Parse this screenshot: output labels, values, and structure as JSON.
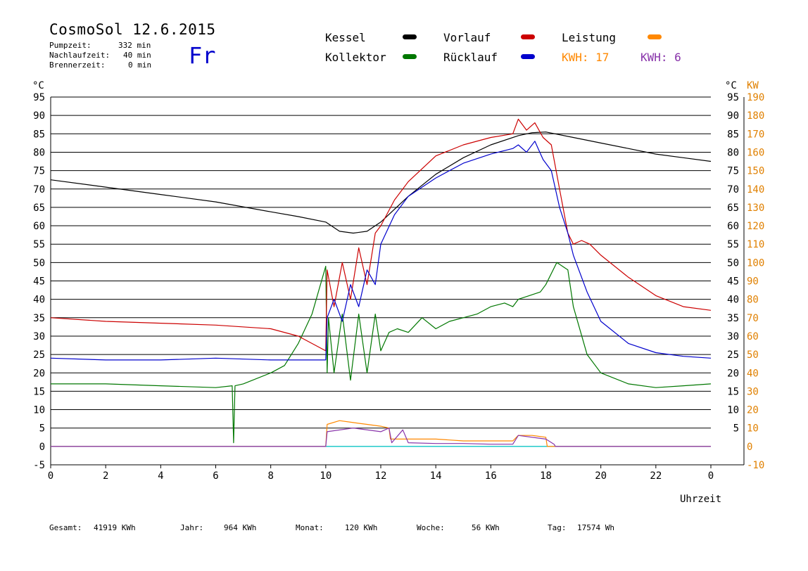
{
  "header": {
    "title": "CosmoSol 12.6.2015",
    "day": "Fr",
    "stats": [
      {
        "label": "Pumpzeit:",
        "value": "332 min"
      },
      {
        "label": "Nachlaufzeit:",
        "value": "40 min"
      },
      {
        "label": "Brennerzeit:",
        "value": "0 min"
      }
    ]
  },
  "legend": {
    "kessel": "Kessel",
    "kollektor": "Kollektor",
    "vorlauf": "Vorlauf",
    "ruecklauf": "Rücklauf",
    "leistung": "Leistung",
    "kwh1": "KWH: 17",
    "kwh2": "KWH: 6"
  },
  "colors": {
    "kessel": "#000000",
    "kollektor": "#007700",
    "vorlauf": "#cc0000",
    "ruecklauf": "#0000cc",
    "leistung": "#ff8800",
    "kwh2": "#8833aa",
    "baseline": "#00cccc"
  },
  "axes": {
    "left_unit": "°C",
    "right_unit": "°C",
    "right2_unit": "KW",
    "xlabel": "Uhrzeit"
  },
  "footer": [
    {
      "label": "Gesamt:",
      "value": "41919 KWh"
    },
    {
      "label": "Jahr:",
      "value": "964 KWh"
    },
    {
      "label": "Monat:",
      "value": "120 KWh"
    },
    {
      "label": "Woche:",
      "value": "56 KWh"
    },
    {
      "label": "Tag:",
      "value": "17574 Wh"
    }
  ],
  "chart_data": {
    "type": "line",
    "x_ticks": [
      "0",
      "2",
      "4",
      "6",
      "8",
      "10",
      "12",
      "14",
      "16",
      "18",
      "20",
      "22",
      "0"
    ],
    "xlim": [
      0,
      24
    ],
    "ylim": [
      -5,
      95
    ],
    "y_ticks_left": [
      -5,
      0,
      5,
      10,
      15,
      20,
      25,
      30,
      35,
      40,
      45,
      50,
      55,
      60,
      65,
      70,
      75,
      80,
      85,
      90,
      95
    ],
    "y_ticks_right": [
      5,
      10,
      15,
      20,
      25,
      30,
      35,
      40,
      45,
      50,
      55,
      60,
      65,
      70,
      75,
      80,
      85,
      90,
      95
    ],
    "y2_ticks": [
      -10,
      0,
      10,
      20,
      30,
      40,
      50,
      60,
      70,
      80,
      90,
      100,
      110,
      120,
      130,
      140,
      150,
      160,
      170,
      180,
      190
    ],
    "grid": true,
    "series": [
      {
        "name": "Kessel",
        "color": "#000000",
        "x": [
          0,
          2,
          4,
          6,
          8,
          9,
          10,
          10.5,
          11,
          11.5,
          12,
          12.5,
          13,
          14,
          15,
          16,
          17,
          17.5,
          18,
          19,
          20,
          21,
          22,
          23,
          24
        ],
        "y": [
          72.5,
          70.5,
          68.5,
          66.5,
          63.8,
          62.5,
          61,
          58.5,
          58,
          58.5,
          61,
          64.5,
          68,
          74,
          78.5,
          82,
          84.5,
          85.3,
          85.5,
          84,
          82.5,
          81,
          79.5,
          78.5,
          77.5
        ]
      },
      {
        "name": "Kollektor",
        "color": "#007700",
        "x": [
          0,
          2,
          4,
          6,
          6.6,
          6.65,
          6.7,
          7,
          8,
          8.5,
          9,
          9.5,
          10,
          10.05,
          10.1,
          10.3,
          10.6,
          10.9,
          11.2,
          11.5,
          11.8,
          12,
          12.3,
          12.6,
          13,
          13.5,
          14,
          14.5,
          15,
          15.5,
          16,
          16.5,
          16.8,
          17,
          17.4,
          17.8,
          18,
          18.4,
          18.8,
          19,
          19.5,
          20,
          21,
          22,
          23,
          24
        ],
        "y": [
          17,
          17,
          16.5,
          16,
          16.5,
          1,
          16.5,
          17,
          20,
          22,
          28,
          36,
          49,
          20,
          35,
          20,
          36,
          18,
          36,
          20,
          36,
          26,
          31,
          32,
          31,
          35,
          32,
          34,
          35,
          36,
          38,
          39,
          38,
          40,
          41,
          42,
          44,
          50,
          48,
          38,
          25,
          20,
          17,
          16,
          16.5,
          17
        ]
      },
      {
        "name": "Vorlauf",
        "color": "#cc0000",
        "x": [
          0,
          2,
          4,
          6,
          8,
          9,
          10,
          10.05,
          10.3,
          10.6,
          10.9,
          11.2,
          11.5,
          11.8,
          12,
          12.5,
          13,
          14,
          15,
          16,
          16.8,
          17,
          17.3,
          17.6,
          17.9,
          18.2,
          18.5,
          18.8,
          19,
          19.3,
          19.6,
          20,
          21,
          22,
          23,
          24
        ],
        "y": [
          35,
          34,
          33.5,
          33,
          32,
          30,
          26,
          48,
          38,
          50,
          40,
          54,
          44,
          58,
          60,
          67,
          72,
          79,
          82,
          84,
          85,
          89,
          86,
          88,
          84,
          82,
          70,
          58,
          55,
          56,
          55,
          52,
          46,
          41,
          38,
          37
        ]
      },
      {
        "name": "Rücklauf",
        "color": "#0000cc",
        "x": [
          0,
          2,
          4,
          6,
          8,
          9,
          10,
          10.05,
          10.3,
          10.6,
          10.9,
          11.2,
          11.5,
          11.8,
          12,
          12.5,
          13,
          14,
          15,
          16,
          16.8,
          17,
          17.3,
          17.6,
          17.9,
          18.2,
          18.5,
          18.8,
          19,
          19.5,
          20,
          21,
          22,
          23,
          24
        ],
        "y": [
          24,
          23.5,
          23.5,
          24,
          23.5,
          23.5,
          23.5,
          35,
          40,
          34,
          44,
          38,
          48,
          44,
          55,
          63,
          68,
          73,
          77,
          79.5,
          81,
          82,
          80,
          83,
          78,
          75,
          65,
          58,
          52,
          42,
          34,
          28,
          25.5,
          24.5,
          24
        ]
      },
      {
        "name": "Leistung",
        "color": "#ff8800",
        "x": [
          0,
          10,
          10.05,
          10.5,
          11,
          11.5,
          12,
          12.3,
          12.35,
          13,
          14,
          15,
          16,
          16.8,
          17,
          17.5,
          18,
          18.05,
          24
        ],
        "y": [
          0,
          0,
          6,
          7,
          6.5,
          6,
          5.5,
          5,
          2,
          2,
          2,
          1.5,
          1.5,
          1.5,
          3,
          3,
          2.5,
          0,
          0
        ]
      },
      {
        "name": "KWH: 6",
        "color": "#8833aa",
        "x": [
          0,
          10,
          10.05,
          11,
          12,
          12.3,
          12.4,
          12.8,
          13,
          14,
          15,
          16,
          16.8,
          17,
          18,
          18.3,
          18.35,
          24
        ],
        "y": [
          0,
          0,
          4,
          5,
          4,
          5,
          1,
          4.5,
          1,
          0.8,
          0.8,
          0.6,
          0.6,
          3,
          2,
          0.6,
          0,
          0
        ]
      }
    ]
  }
}
